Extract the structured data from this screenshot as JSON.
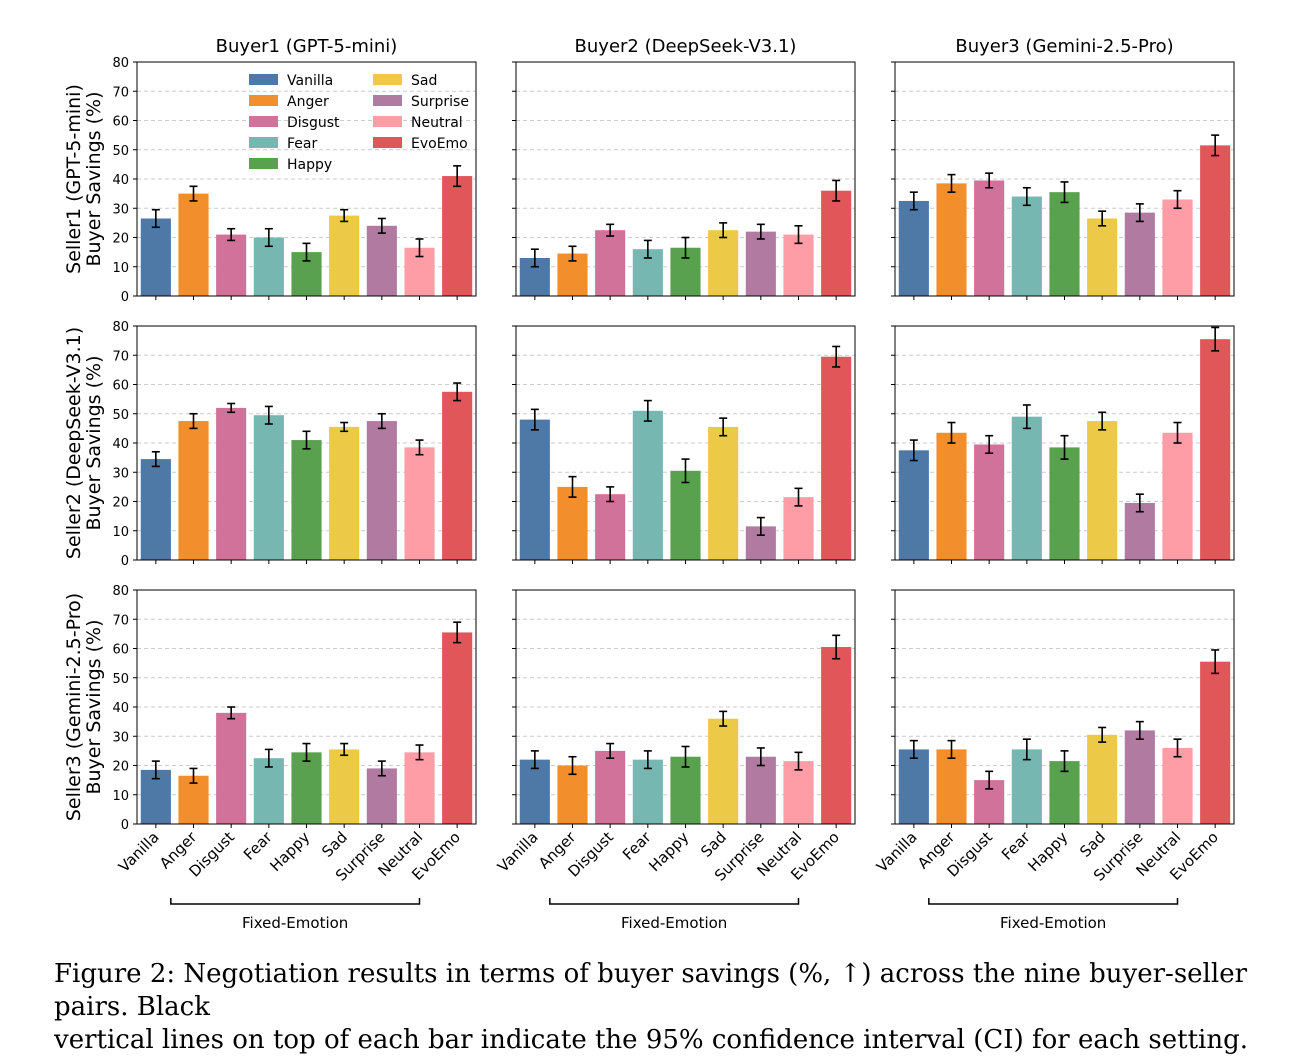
{
  "caption": {
    "line1": "Figure 2: Negotiation results in terms of buyer savings (%, ↑) across the nine buyer-seller pairs. Black",
    "line2": "vertical lines on top of each bar indicate the 95% confidence interval (CI) for each setting."
  },
  "chart_data": {
    "type": "bar",
    "layout": "3x3 grid of grouped bar panels",
    "categories": [
      "Vanilla",
      "Anger",
      "Disgust",
      "Fear",
      "Happy",
      "Sad",
      "Surprise",
      "Neutral",
      "EvoEmo"
    ],
    "colors": [
      "#4e79a7",
      "#f28e2b",
      "#d1729a",
      "#76b7b2",
      "#59a14f",
      "#edc948",
      "#b07aa1",
      "#ff9da7",
      "#e15759"
    ],
    "column_titles": [
      "Buyer1 (GPT-5-mini)",
      "Buyer2 (DeepSeek-V3.1)",
      "Buyer3 (Gemini-2.5-Pro)"
    ],
    "row_labels": [
      [
        "Seller1 (GPT-5-mini)",
        "Buyer Savings (%)"
      ],
      [
        "Seller2 (DeepSeek-V3.1)",
        "Buyer Savings (%)"
      ],
      [
        "Seller3 (Gemini-2.5-Pro)",
        "Buyer Savings (%)"
      ]
    ],
    "ylim": [
      0,
      80
    ],
    "yticks": [
      0,
      10,
      20,
      30,
      40,
      50,
      60,
      70,
      80
    ],
    "grid": "horizontal dashed",
    "legend": {
      "placement": "top-left panel, upper area",
      "columns": 2
    },
    "group_bracket": {
      "label": "Fixed-Emotion",
      "from": "Vanilla",
      "to": "Neutral"
    },
    "panels": [
      [
        {
          "values": [
            26.5,
            35,
            21,
            20,
            15,
            27.5,
            24,
            16.5,
            41
          ],
          "ci": [
            3,
            2.5,
            2,
            3,
            3,
            2,
            2.5,
            3,
            3.5
          ]
        },
        {
          "values": [
            13,
            14.5,
            22.5,
            16,
            16.5,
            22.5,
            22,
            21,
            36
          ],
          "ci": [
            3,
            2.5,
            2,
            3,
            3.5,
            2.5,
            2.5,
            3,
            3.5
          ]
        },
        {
          "values": [
            32.5,
            38.5,
            39.5,
            34,
            35.5,
            26.5,
            28.5,
            33,
            51.5
          ],
          "ci": [
            3,
            3,
            2.5,
            3,
            3.5,
            2.5,
            3,
            3,
            3.5
          ]
        }
      ],
      [
        {
          "values": [
            34.5,
            47.5,
            52,
            49.5,
            41,
            45.5,
            47.5,
            38.5,
            57.5
          ],
          "ci": [
            2.5,
            2.5,
            1.5,
            3,
            3,
            1.5,
            2.5,
            2.5,
            3
          ]
        },
        {
          "values": [
            48,
            25,
            22.5,
            51,
            30.5,
            45.5,
            11.5,
            21.5,
            69.5
          ],
          "ci": [
            3.5,
            3.5,
            2.5,
            3.5,
            4,
            3,
            3,
            3,
            3.5
          ]
        },
        {
          "values": [
            37.5,
            43.5,
            39.5,
            49,
            38.5,
            47.5,
            19.5,
            43.5,
            75.5
          ],
          "ci": [
            3.5,
            3.5,
            3,
            4,
            4,
            3,
            3,
            3.5,
            4
          ]
        }
      ],
      [
        {
          "values": [
            18.5,
            16.5,
            38,
            22.5,
            24.5,
            25.5,
            19,
            24.5,
            65.5
          ],
          "ci": [
            3,
            2.5,
            2,
            3,
            3,
            2,
            2.5,
            2.5,
            3.5
          ]
        },
        {
          "values": [
            22,
            20,
            25,
            22,
            23,
            36,
            23,
            21.5,
            60.5
          ],
          "ci": [
            3,
            3,
            2.5,
            3,
            3.5,
            2.5,
            3,
            3,
            4
          ]
        },
        {
          "values": [
            25.5,
            25.5,
            15,
            25.5,
            21.5,
            30.5,
            32,
            26,
            55.5
          ],
          "ci": [
            3,
            3,
            3,
            3.5,
            3.5,
            2.5,
            3,
            3,
            4
          ]
        }
      ]
    ]
  }
}
